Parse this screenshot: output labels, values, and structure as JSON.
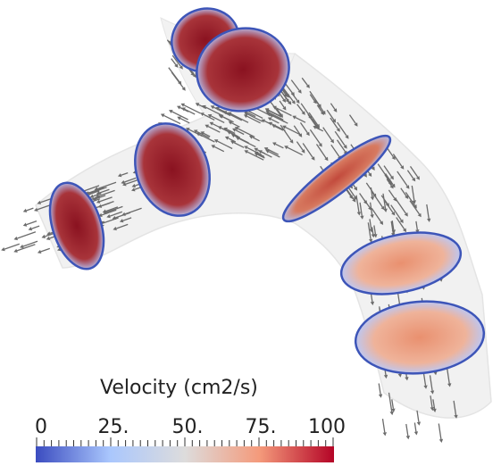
{
  "legend": {
    "title": "Velocity (cm2/s)",
    "ticks": [
      "0",
      "25.",
      "50.",
      "75.",
      "100"
    ],
    "range": [
      0,
      100
    ],
    "colormap": [
      "#3b4cc0",
      "#aac7fd",
      "#dddcdc",
      "#f49a7b",
      "#b40426"
    ]
  },
  "colors": {
    "vessel": "#d9d9d9",
    "slice_rim": "#3d55b8",
    "arrow": "#6b6b6b"
  }
}
